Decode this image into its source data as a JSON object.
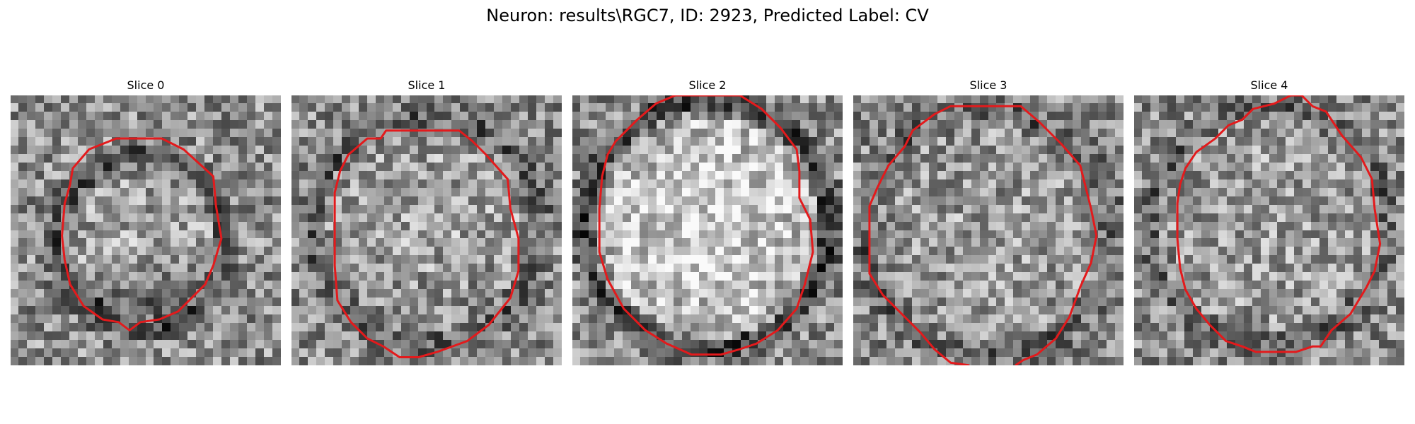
{
  "figure": {
    "title": "Neuron: results\\RGC7, ID: 2923, Predicted Label: CV"
  },
  "slices": [
    {
      "title": "Slice 0",
      "pattern": "small-dark-ring"
    },
    {
      "title": "Slice 1",
      "pattern": "medium-faint-ring"
    },
    {
      "title": "Slice 2",
      "pattern": "large-bright-center-dark-ring"
    },
    {
      "title": "Slice 3",
      "pattern": "large-faint-ring-open-bottom"
    },
    {
      "title": "Slice 4",
      "pattern": "large-faint-ring"
    }
  ],
  "image_style": {
    "colormap": "gray",
    "contour_color": "#e31a1c"
  }
}
